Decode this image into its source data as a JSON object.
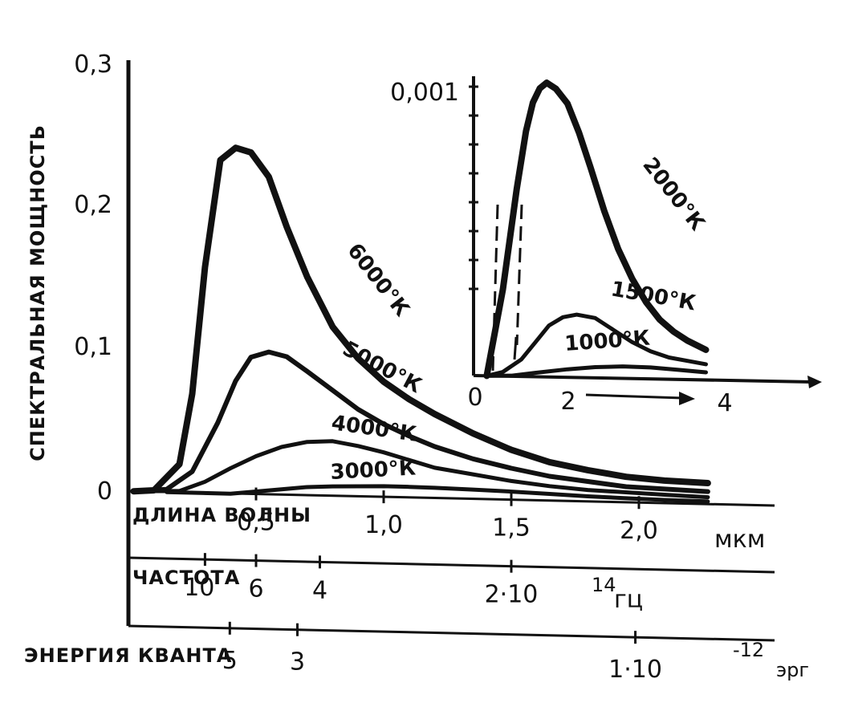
{
  "chart_data": [
    {
      "type": "line",
      "ylabel": "СПЕКТРАЛЬНАЯ МОЩНОСТЬ",
      "yticks": [
        "0",
        "0,1",
        "0,2",
        "0,3"
      ],
      "ylim": [
        0,
        0.3
      ],
      "x_axes": {
        "wavelength": {
          "label": "ДЛИНА ВОЛНЫ",
          "unit": "мкм",
          "ticks": [
            {
              "value": 0.5,
              "label": "0,5"
            },
            {
              "value": 1.0,
              "label": "1,0"
            },
            {
              "value": 1.5,
              "label": "1,5"
            },
            {
              "value": 2.0,
              "label": "2,0"
            }
          ]
        },
        "frequency": {
          "label": "ЧАСТОТА",
          "tick_values": [
            10,
            6,
            4,
            2
          ],
          "tick_labels": [
            "10",
            "6",
            "4",
            "2·10"
          ],
          "exponent": "14",
          "unit": "гц"
        },
        "energy": {
          "label": "ЭНЕРГИЯ КВАНТА",
          "tick_values": [
            5,
            3,
            1
          ],
          "tick_labels": [
            "5",
            "3",
            "1·10"
          ],
          "exponent": "-12",
          "unit": "эрг"
        }
      },
      "series": [
        {
          "name": "6000°К",
          "x": [
            0.02,
            0.1,
            0.2,
            0.25,
            0.3,
            0.36,
            0.42,
            0.48,
            0.55,
            0.62,
            0.7,
            0.8,
            0.9,
            1.0,
            1.1,
            1.2,
            1.35,
            1.5,
            1.65,
            1.8,
            1.95,
            2.1,
            2.27
          ],
          "y": [
            0,
            0.001,
            0.02,
            0.07,
            0.16,
            0.236,
            0.245,
            0.242,
            0.225,
            0.19,
            0.155,
            0.12,
            0.098,
            0.082,
            0.07,
            0.06,
            0.047,
            0.036,
            0.028,
            0.023,
            0.019,
            0.017,
            0.016
          ]
        },
        {
          "name": "5000°К",
          "x": [
            0.02,
            0.15,
            0.25,
            0.35,
            0.42,
            0.48,
            0.55,
            0.62,
            0.7,
            0.8,
            0.9,
            1.0,
            1.1,
            1.2,
            1.35,
            1.5,
            1.65,
            1.8,
            1.95,
            2.1,
            2.27
          ],
          "y": [
            0,
            0.002,
            0.015,
            0.05,
            0.08,
            0.097,
            0.101,
            0.098,
            0.088,
            0.075,
            0.062,
            0.052,
            0.044,
            0.037,
            0.029,
            0.023,
            0.018,
            0.015,
            0.012,
            0.011,
            0.01
          ]
        },
        {
          "name": "4000°К",
          "x": [
            0.02,
            0.2,
            0.3,
            0.4,
            0.5,
            0.6,
            0.7,
            0.8,
            0.9,
            1.0,
            1.1,
            1.2,
            1.35,
            1.5,
            1.65,
            1.8,
            1.95,
            2.1,
            2.27
          ],
          "y": [
            0,
            0.001,
            0.008,
            0.018,
            0.027,
            0.034,
            0.038,
            0.039,
            0.036,
            0.032,
            0.027,
            0.022,
            0.018,
            0.014,
            0.011,
            0.009,
            0.008,
            0.007,
            0.006
          ]
        },
        {
          "name": "3000°К",
          "x": [
            0.15,
            0.4,
            0.5,
            0.6,
            0.7,
            0.8,
            0.9,
            1.0,
            1.1,
            1.2,
            1.35,
            1.5,
            1.65,
            1.8,
            1.95,
            2.1,
            2.27
          ],
          "y": [
            0,
            0,
            0.002,
            0.004,
            0.006,
            0.007,
            0.0075,
            0.008,
            0.008,
            0.0078,
            0.0072,
            0.0065,
            0.0055,
            0.0045,
            0.0038,
            0.0033,
            0.003
          ]
        }
      ]
    },
    {
      "type": "line",
      "title": "",
      "yticks": [
        "0,001"
      ],
      "ylim": [
        0,
        0.001
      ],
      "xticks": [
        "0",
        "2",
        "4"
      ],
      "xlim": [
        0,
        5.2
      ],
      "series": [
        {
          "name": "2000°К",
          "x": [
            0.25,
            0.6,
            0.9,
            1.1,
            1.25,
            1.4,
            1.55,
            1.75,
            2.0,
            2.25,
            2.5,
            2.8,
            3.1,
            3.4,
            3.7,
            4.0,
            4.3,
            4.6,
            5.0
          ],
          "y": [
            0,
            0.0003,
            0.00065,
            0.00085,
            0.00095,
            0.001,
            0.00102,
            0.001,
            0.00095,
            0.00085,
            0.00073,
            0.00058,
            0.00045,
            0.00035,
            0.00027,
            0.00021,
            0.00017,
            0.00014,
            0.00011
          ]
        },
        {
          "name": "1500°К",
          "x": [
            0.25,
            0.6,
            1.0,
            1.3,
            1.6,
            1.9,
            2.2,
            2.6,
            3.0,
            3.4,
            3.8,
            4.2,
            4.6,
            5.0
          ],
          "y": [
            0,
            1.5e-05,
            6e-05,
            0.00012,
            0.00018,
            0.00021,
            0.00022,
            0.00021,
            0.00017,
            0.00013,
            0.0001,
            8e-05,
            7e-05,
            6e-05
          ]
        },
        {
          "name": "1000°К",
          "x": [
            0.25,
            0.8,
            1.3,
            2.0,
            2.6,
            3.2,
            3.8,
            4.4,
            5.0
          ],
          "y": [
            0,
            3e-06,
            1.5e-05,
            3e-05,
            4e-05,
            4.5e-05,
            4.4e-05,
            3.8e-05,
            3.2e-05
          ]
        }
      ]
    }
  ]
}
